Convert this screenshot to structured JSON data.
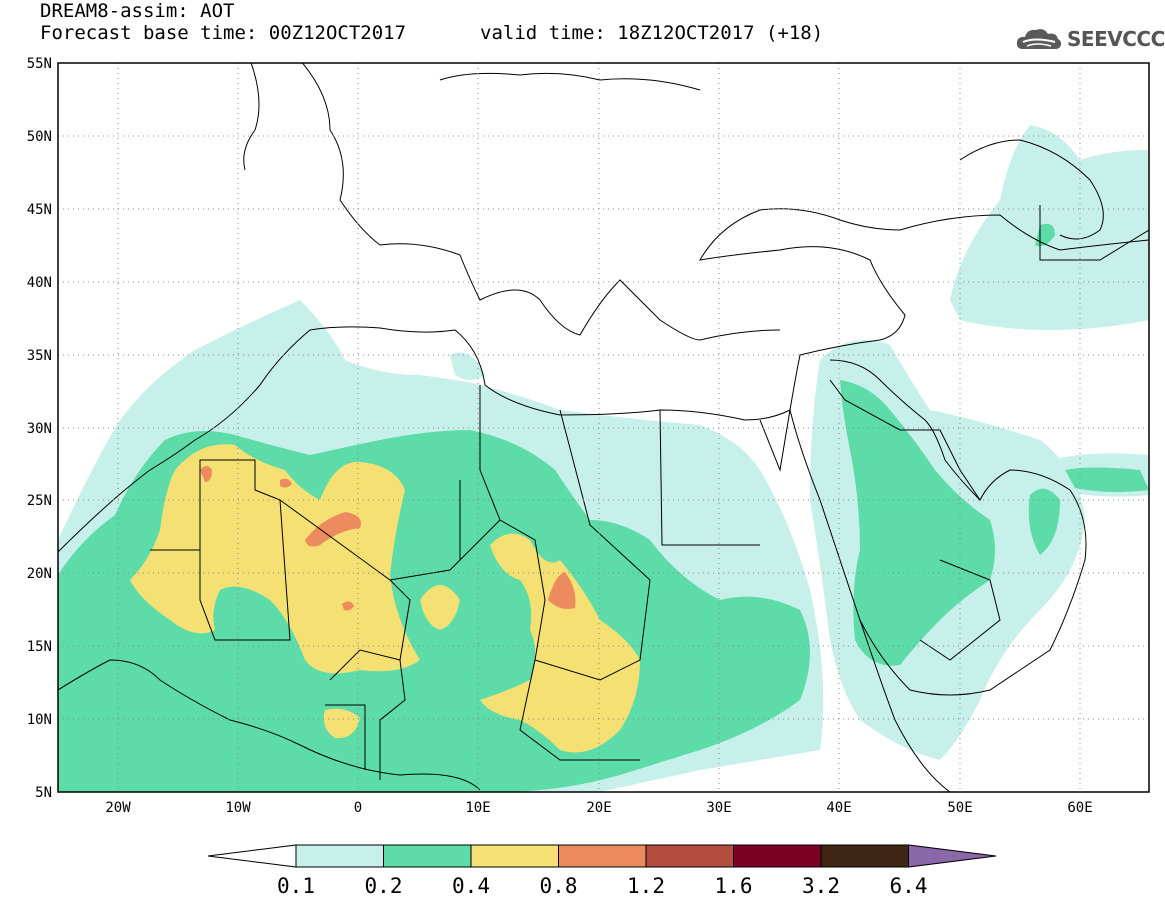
{
  "title": {
    "line1": "DREAM8-assim: AOT",
    "line2": "Forecast base time: 00Z12OCT2017",
    "valid": "valid time: 18Z12OCT2017 (+18)"
  },
  "logo": {
    "text": "SEEVCCC",
    "icon": "cloud-logo-icon"
  },
  "map": {
    "lon_range": [
      -25,
      65
    ],
    "lat_range": [
      5,
      55
    ],
    "lat_ticks": [
      "5N",
      "10N",
      "15N",
      "20N",
      "25N",
      "30N",
      "35N",
      "40N",
      "45N",
      "50N",
      "55N"
    ],
    "lon_ticks": [
      "20W",
      "10W",
      "0",
      "10E",
      "20E",
      "30E",
      "40E",
      "50E",
      "60E"
    ],
    "grid": true
  },
  "colorbar": {
    "labels": [
      "0.1",
      "0.2",
      "0.4",
      "0.8",
      "1.2",
      "1.6",
      "3.2",
      "6.4"
    ],
    "colors": [
      "#ffffff",
      "#c8f0ea",
      "#5ddcaa",
      "#f5e173",
      "#ec8b5d",
      "#b54d3e",
      "#7c0024",
      "#3e2412",
      "#8a67a8"
    ]
  }
}
